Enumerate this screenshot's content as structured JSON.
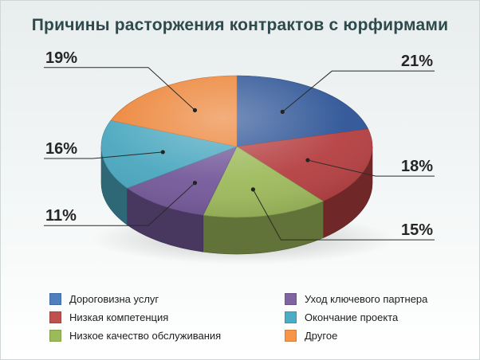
{
  "chart_data": {
    "type": "pie",
    "title": "Причины расторжения контрактов с юрфирмами",
    "slices": [
      {
        "label": "Дороговизна услуг",
        "value": 21,
        "display": "21%",
        "color": "#2d5496"
      },
      {
        "label": "Низкая компетенция",
        "value": 18,
        "display": "18%",
        "color": "#b53f41"
      },
      {
        "label": "Низкое качество обслуживания",
        "value": 15,
        "display": "15%",
        "color": "#9dba5b"
      },
      {
        "label": "Уход ключевого партнера",
        "value": 11,
        "display": "11%",
        "color": "#74599a"
      },
      {
        "label": "Окончание проекта",
        "value": 16,
        "display": "16%",
        "color": "#4aa7bf"
      },
      {
        "label": "Другое",
        "value": 19,
        "display": "19%",
        "color": "#ec8336"
      }
    ],
    "legend": [
      {
        "label": "Дороговизна услуг",
        "color": "#4f7fbf"
      },
      {
        "label": "Низкая компетенция",
        "color": "#c0504d"
      },
      {
        "label": "Низкое качество обслуживания",
        "color": "#9bbb59"
      },
      {
        "label": "Уход ключевого партнера",
        "color": "#8064a2"
      },
      {
        "label": "Окончание проекта",
        "color": "#4bacc6"
      },
      {
        "label": "Другое",
        "color": "#f79646"
      }
    ]
  }
}
